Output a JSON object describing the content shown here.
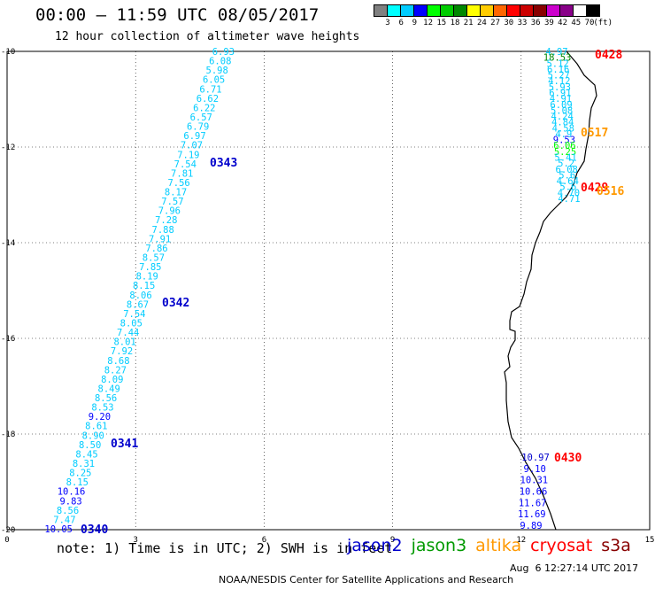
{
  "header": {
    "title": "00:00 – 11:59 UTC 08/05/2017",
    "subtitle": "12 hour collection of altimeter wave heights"
  },
  "legend": {
    "colors": [
      "#808080",
      "#00ffff",
      "#00ccff",
      "#0000ff",
      "#00ff00",
      "#00cc00",
      "#008800",
      "#ffff00",
      "#ffcc00",
      "#ff6600",
      "#ff0000",
      "#cc0000",
      "#880000",
      "#cc00cc",
      "#880088",
      "#ffffff",
      "#000000"
    ],
    "labels": [
      "3",
      "6",
      "9",
      "12",
      "15",
      "18",
      "21",
      "24",
      "27",
      "30",
      "33",
      "36",
      "39",
      "42",
      "45",
      "70",
      "(ft)"
    ]
  },
  "axes": {
    "x_ticks": [
      "0",
      "3",
      "6",
      "9",
      "12",
      "15"
    ],
    "y_ticks": [
      "-10",
      "-12",
      "-14",
      "-16",
      "-18",
      "-20"
    ]
  },
  "pass_labels": [
    {
      "text": "0343",
      "color": "#0000cc"
    },
    {
      "text": "0342",
      "color": "#0000cc"
    },
    {
      "text": "0341",
      "color": "#0000cc"
    },
    {
      "text": "0340",
      "color": "#0000cc"
    },
    {
      "text": "0428",
      "color": "#ff0000"
    },
    {
      "text": "0517",
      "color": "#ff9900"
    },
    {
      "text": "0429",
      "color": "#ff0000"
    },
    {
      "text": "0516",
      "color": "#ff9900"
    },
    {
      "text": "0430",
      "color": "#ff0000"
    }
  ],
  "track_jason2": [
    {
      "v": "6.93",
      "c": "#00ccff"
    },
    {
      "v": "6.08",
      "c": "#00ccff"
    },
    {
      "v": "5.98",
      "c": "#00ccff"
    },
    {
      "v": "6.05",
      "c": "#00ccff"
    },
    {
      "v": "6.71",
      "c": "#00ccff"
    },
    {
      "v": "6.62",
      "c": "#00ccff"
    },
    {
      "v": "6.22",
      "c": "#00ccff"
    },
    {
      "v": "6.57",
      "c": "#00ccff"
    },
    {
      "v": "6.79",
      "c": "#00ccff"
    },
    {
      "v": "6.97",
      "c": "#00ccff"
    },
    {
      "v": "7.07",
      "c": "#00ccff"
    },
    {
      "v": "7.19",
      "c": "#00ccff"
    },
    {
      "v": "7.54",
      "c": "#00ccff"
    },
    {
      "v": "7.81",
      "c": "#00ccff"
    },
    {
      "v": "7.56",
      "c": "#00ccff"
    },
    {
      "v": "8.17",
      "c": "#00ccff"
    },
    {
      "v": "7.57",
      "c": "#00ccff"
    },
    {
      "v": "7.96",
      "c": "#00ccff"
    },
    {
      "v": "7.28",
      "c": "#00ccff"
    },
    {
      "v": "7.88",
      "c": "#00ccff"
    },
    {
      "v": "7.91",
      "c": "#00ccff"
    },
    {
      "v": "7.86",
      "c": "#00ccff"
    },
    {
      "v": "8.57",
      "c": "#00ccff"
    },
    {
      "v": "7.85",
      "c": "#00ccff"
    },
    {
      "v": "8.19",
      "c": "#00ccff"
    },
    {
      "v": "8.15",
      "c": "#00ccff"
    },
    {
      "v": "8.06",
      "c": "#00ccff"
    },
    {
      "v": "8.67",
      "c": "#00ccff"
    },
    {
      "v": "7.54",
      "c": "#00ccff"
    },
    {
      "v": "8.05",
      "c": "#00ccff"
    },
    {
      "v": "7.44",
      "c": "#00ccff"
    },
    {
      "v": "8.01",
      "c": "#00ccff"
    },
    {
      "v": "7.92",
      "c": "#00ccff"
    },
    {
      "v": "8.68",
      "c": "#00ccff"
    },
    {
      "v": "8.27",
      "c": "#00ccff"
    },
    {
      "v": "8.09",
      "c": "#00ccff"
    },
    {
      "v": "8.49",
      "c": "#00ccff"
    },
    {
      "v": "8.56",
      "c": "#00ccff"
    },
    {
      "v": "8.53",
      "c": "#00ccff"
    },
    {
      "v": "9.20",
      "c": "#0000ff"
    },
    {
      "v": "8.61",
      "c": "#00ccff"
    },
    {
      "v": "8.90",
      "c": "#00ccff"
    },
    {
      "v": "8.50",
      "c": "#00ccff"
    },
    {
      "v": "8.45",
      "c": "#00ccff"
    },
    {
      "v": "8.31",
      "c": "#00ccff"
    },
    {
      "v": "8.25",
      "c": "#00ccff"
    },
    {
      "v": "8.15",
      "c": "#00ccff"
    },
    {
      "v": "10.16",
      "c": "#0000ff"
    },
    {
      "v": "9.83",
      "c": "#0000ff"
    },
    {
      "v": "8.56",
      "c": "#00ccff"
    },
    {
      "v": "7.47",
      "c": "#00ccff"
    },
    {
      "v": "10.05",
      "c": "#0000ff"
    }
  ],
  "track_coast_top": [
    {
      "v": "4.97",
      "c": "#00ccff"
    },
    {
      "v": "18.53",
      "c": "#008800"
    },
    {
      "v": "5.12",
      "c": "#00ccff"
    },
    {
      "v": "6.16",
      "c": "#00ccff"
    },
    {
      "v": "5.27",
      "c": "#00ccff"
    },
    {
      "v": "4.12",
      "c": "#00ccff"
    },
    {
      "v": "5.93",
      "c": "#00ccff"
    },
    {
      "v": "6.91",
      "c": "#00ccff"
    },
    {
      "v": "4.91",
      "c": "#00ccff"
    },
    {
      "v": "6.09",
      "c": "#00ccff"
    },
    {
      "v": "5.08",
      "c": "#00ccff"
    },
    {
      "v": "4.24",
      "c": "#00ccff"
    },
    {
      "v": "4.84",
      "c": "#00ccff"
    },
    {
      "v": "4.58",
      "c": "#00ccff"
    },
    {
      "v": "4.9",
      "c": "#00ccff"
    },
    {
      "v": "9.53",
      "c": "#0000ff"
    },
    {
      "v": "6.06",
      "c": "#00ff00"
    },
    {
      "v": "5.25",
      "c": "#00ff00"
    },
    {
      "v": "5.41",
      "c": "#00ccff"
    },
    {
      "v": "5.2",
      "c": "#00ccff"
    },
    {
      "v": "6.08",
      "c": "#00ccff"
    },
    {
      "v": "5.6",
      "c": "#00ccff"
    },
    {
      "v": "4.64",
      "c": "#00ccff"
    },
    {
      "v": "5.6",
      "c": "#00ccff"
    },
    {
      "v": "4.70",
      "c": "#00ccff"
    },
    {
      "v": "4.71",
      "c": "#00ccff"
    }
  ],
  "track_coast_bottom": [
    {
      "v": "10.97",
      "c": "#0000cc"
    },
    {
      "v": "9.10",
      "c": "#0000ff"
    },
    {
      "v": "10.31",
      "c": "#0000ff"
    },
    {
      "v": "10.66",
      "c": "#0000ff"
    },
    {
      "v": "11.67",
      "c": "#0000ff"
    },
    {
      "v": "11.69",
      "c": "#0000ff"
    },
    {
      "v": "9.89",
      "c": "#0000ff"
    }
  ],
  "footer": {
    "note": "note:  1) Time is in UTC;  2) SWH is in feet",
    "satellites": [
      {
        "name": "jason2",
        "color": "#0000cc"
      },
      {
        "name": "jason3",
        "color": "#009900"
      },
      {
        "name": "altika",
        "color": "#ff9900"
      },
      {
        "name": "cryosat",
        "color": "#ff0000"
      },
      {
        "name": "s3a",
        "color": "#880000"
      }
    ],
    "credit": "NOAA/NESDIS Center for Satellite Applications and Research",
    "timestamp": "Aug  6 12:27:14 UTC 2017"
  }
}
